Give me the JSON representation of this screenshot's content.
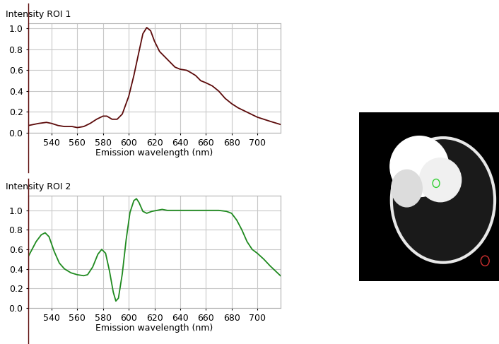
{
  "chart_data": [
    {
      "type": "line",
      "ylabel": "Intensity ROI 1",
      "xlabel": "Emission wavelength (nm)",
      "x": [
        522,
        530,
        536,
        540,
        545,
        550,
        556,
        560,
        565,
        570,
        575,
        580,
        583,
        587,
        591,
        595,
        600,
        604,
        608,
        611,
        614,
        617,
        620,
        624,
        628,
        632,
        636,
        640,
        645,
        648,
        652,
        656,
        660,
        665,
        670,
        675,
        680,
        685,
        690,
        695,
        700,
        705,
        710,
        718
      ],
      "values": [
        0.07,
        0.09,
        0.1,
        0.09,
        0.07,
        0.06,
        0.06,
        0.05,
        0.06,
        0.09,
        0.13,
        0.16,
        0.16,
        0.13,
        0.13,
        0.18,
        0.35,
        0.55,
        0.78,
        0.95,
        1.01,
        0.98,
        0.88,
        0.78,
        0.73,
        0.68,
        0.63,
        0.61,
        0.6,
        0.58,
        0.55,
        0.5,
        0.48,
        0.45,
        0.4,
        0.33,
        0.28,
        0.24,
        0.21,
        0.18,
        0.15,
        0.13,
        0.11,
        0.08
      ],
      "color": "#5c0a0a",
      "xlim": [
        522,
        718
      ],
      "ylim": [
        0,
        1.05
      ],
      "xticks": [
        540,
        560,
        580,
        600,
        620,
        640,
        660,
        680,
        700
      ],
      "yticks": [
        {
          "value": 0,
          "label": "0.0"
        },
        0.2,
        0.4,
        0.6,
        0.8,
        {
          "value": 1,
          "label": "1.0"
        }
      ],
      "grid": true
    },
    {
      "type": "line",
      "ylabel": "Intensity ROI 2",
      "xlabel": "Emission wavelength (nm)",
      "x": [
        522,
        528,
        532,
        535,
        538,
        542,
        546,
        550,
        555,
        560,
        565,
        568,
        572,
        576,
        579,
        582,
        585,
        588,
        590,
        592,
        595,
        598,
        601,
        604,
        606,
        608,
        611,
        614,
        618,
        622,
        626,
        630,
        640,
        650,
        660,
        670,
        676,
        680,
        684,
        688,
        692,
        696,
        700,
        705,
        710,
        718
      ],
      "values": [
        0.53,
        0.68,
        0.75,
        0.77,
        0.73,
        0.58,
        0.46,
        0.4,
        0.36,
        0.34,
        0.33,
        0.34,
        0.42,
        0.55,
        0.6,
        0.56,
        0.38,
        0.16,
        0.07,
        0.1,
        0.35,
        0.7,
        0.98,
        1.1,
        1.12,
        1.08,
        0.99,
        0.97,
        0.99,
        1.0,
        1.01,
        1.0,
        1.0,
        1.0,
        1.0,
        1.0,
        0.99,
        0.97,
        0.9,
        0.8,
        0.68,
        0.6,
        0.56,
        0.5,
        0.43,
        0.33
      ],
      "color": "#1f8a1f",
      "xlim": [
        522,
        718
      ],
      "ylim": [
        0,
        1.15
      ],
      "xticks": [
        540,
        560,
        580,
        600,
        620,
        640,
        660,
        680,
        700
      ],
      "yticks": [
        {
          "value": 0,
          "label": "0.0"
        },
        0.2,
        0.4,
        0.6,
        0.8,
        {
          "value": 1,
          "label": "1.0"
        }
      ],
      "grid": true
    }
  ]
}
